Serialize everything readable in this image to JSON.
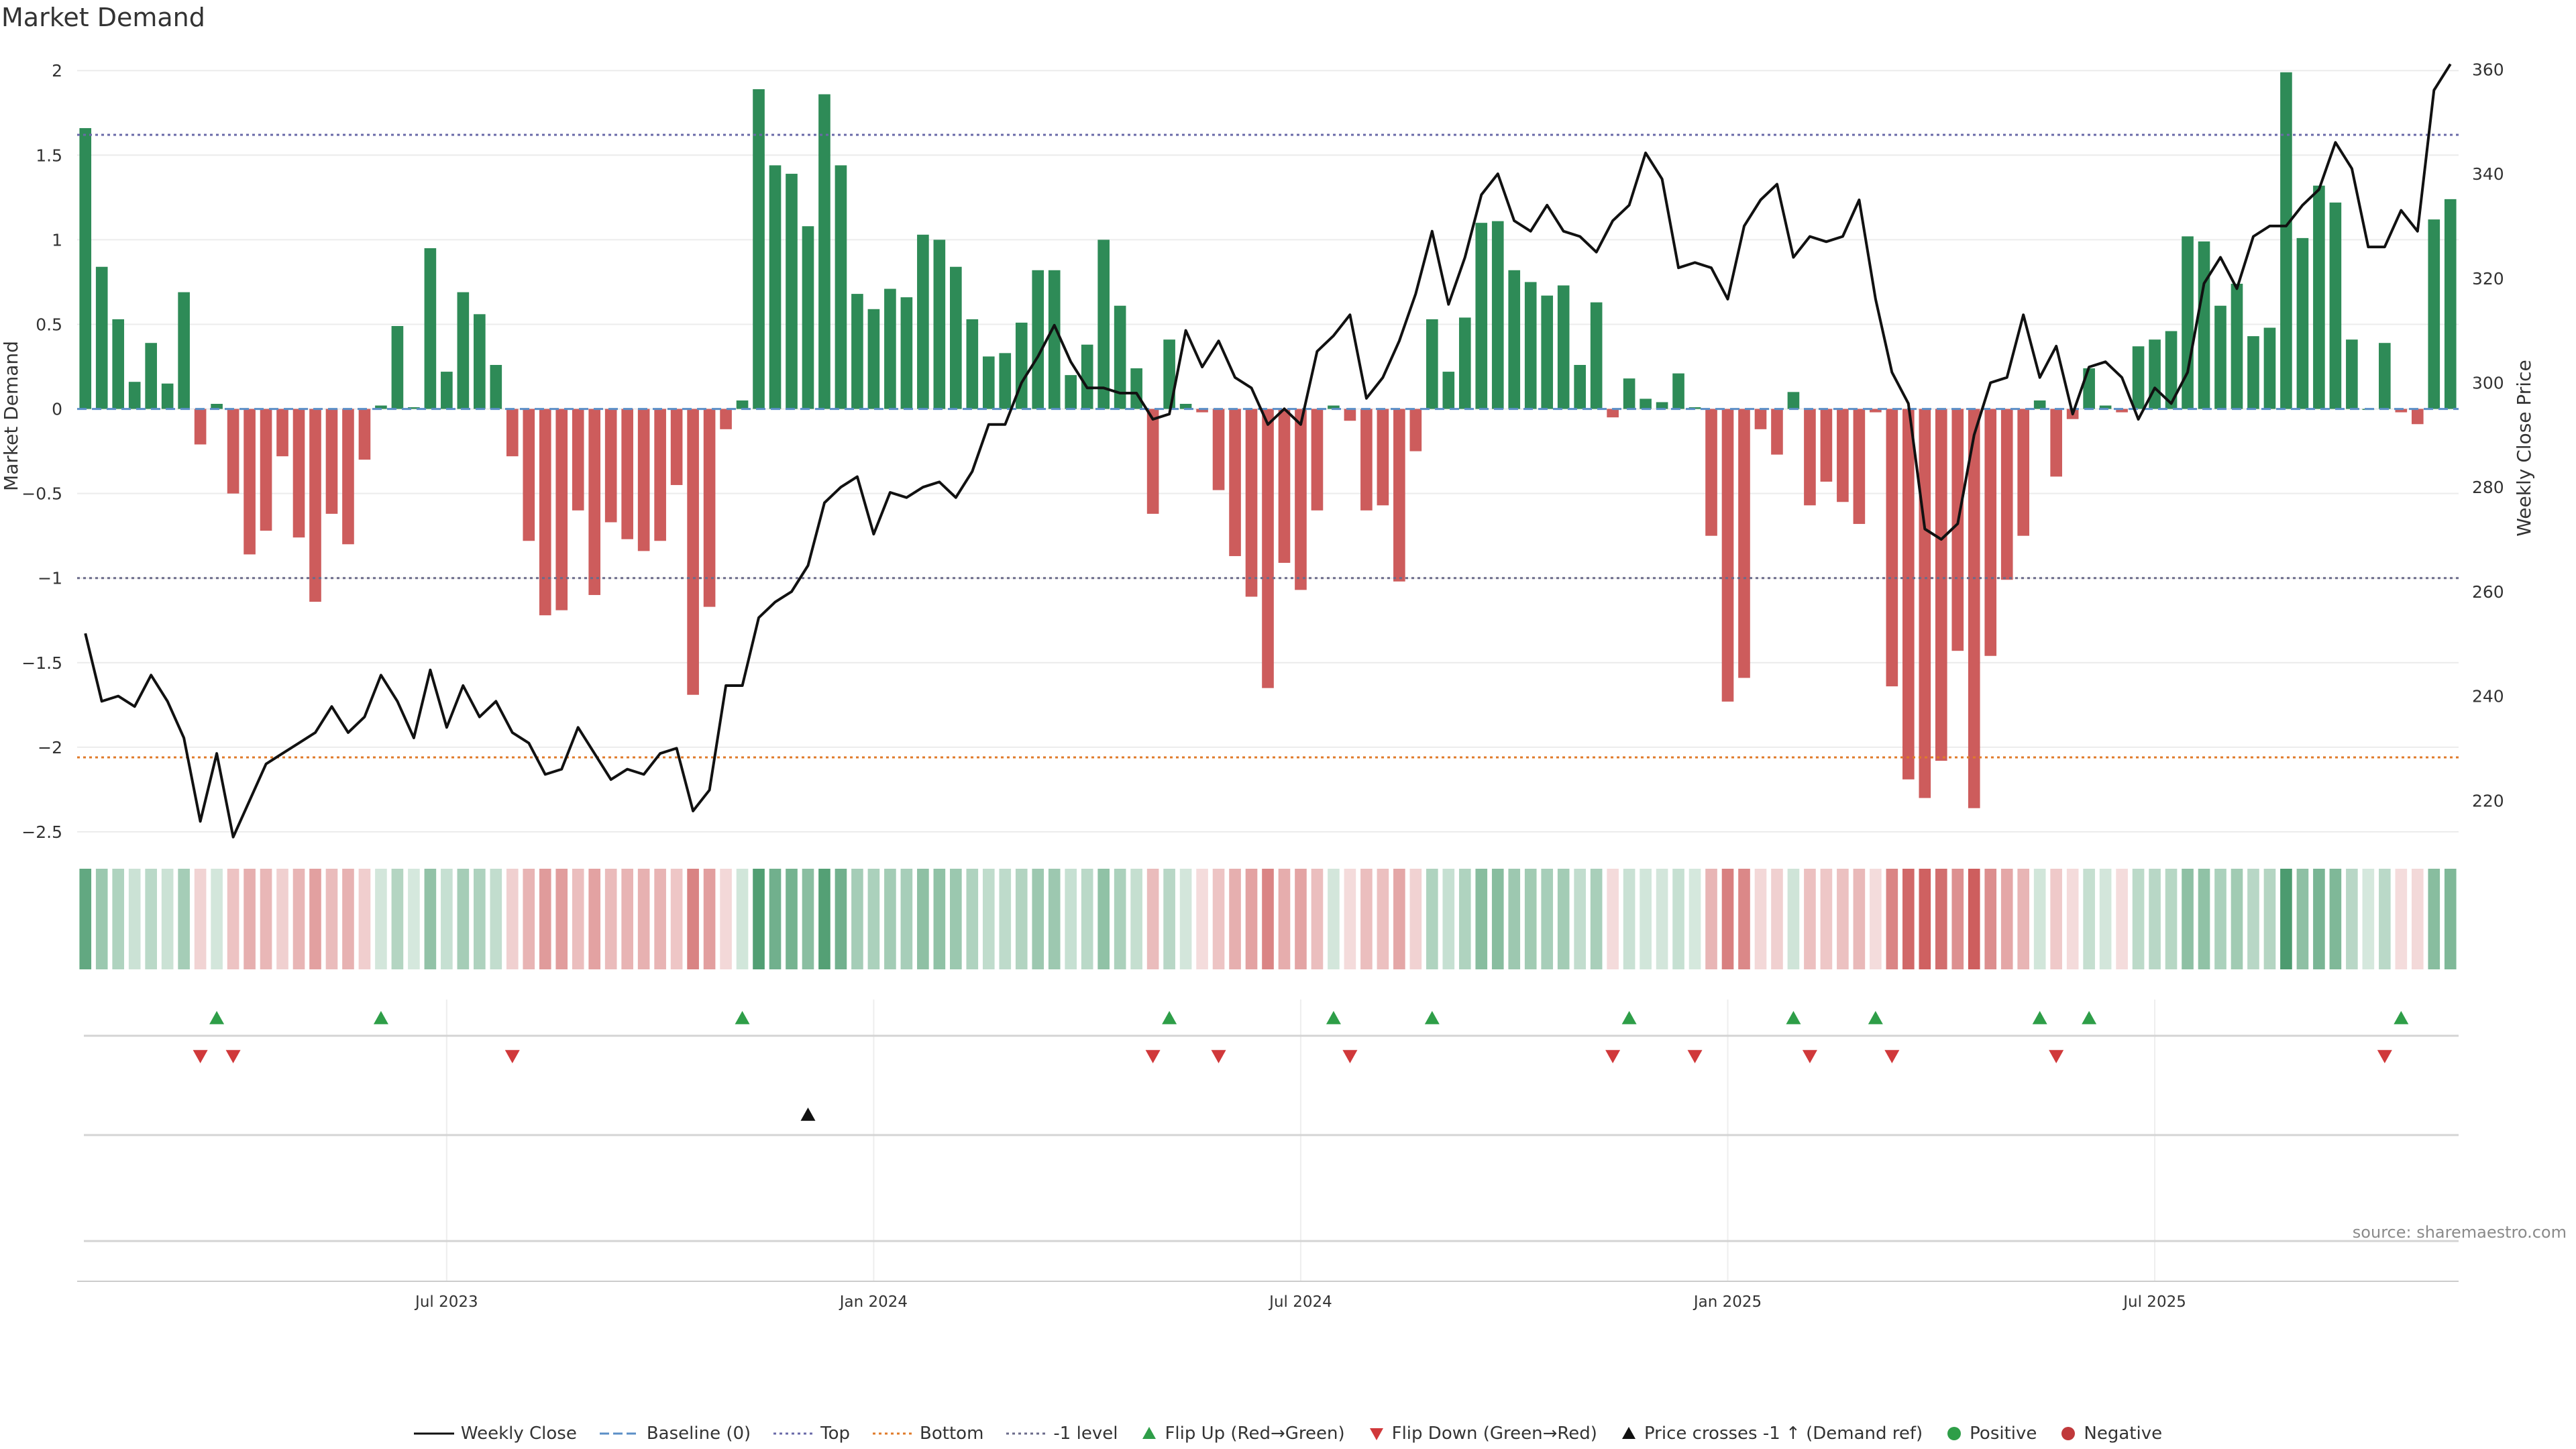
{
  "title": "Market Demand",
  "source": "source: sharemaestro.com",
  "chart_data": {
    "type": "bar+line",
    "title": "Market Demand",
    "ylabel_left": "Market Demand",
    "ylabel_right": "Weekly Close Price",
    "ylim_left": [
      -2.5,
      2.1
    ],
    "ylim_right": [
      214,
      363
    ],
    "left_ticks": [
      2,
      1.5,
      1,
      0.5,
      0,
      -0.5,
      -1,
      -1.5,
      -2,
      -2.5
    ],
    "left_tick_labels": [
      "2",
      "1.5",
      "1",
      "0.5",
      "0",
      "−0.5",
      "−1",
      "−1.5",
      "−2",
      "−2.5"
    ],
    "right_ticks": [
      360,
      340,
      320,
      300,
      280,
      260,
      240,
      220
    ],
    "x_tick_labels": [
      "Jul 2023",
      "Jan 2024",
      "Jul 2024",
      "Jan 2025",
      "Jul 2025"
    ],
    "x_tick_indices": [
      22,
      48,
      74,
      100,
      126
    ],
    "reference_lines": {
      "top": 1.62,
      "bottom": -2.06,
      "minus_one": -1,
      "baseline": 0
    },
    "demand": [
      1.66,
      0.84,
      0.53,
      0.16,
      0.39,
      0.15,
      0.69,
      -0.21,
      0.03,
      -0.5,
      -0.86,
      -0.72,
      -0.28,
      -0.76,
      -1.14,
      -0.62,
      -0.8,
      -0.3,
      0.02,
      0.49,
      0.01,
      0.95,
      0.22,
      0.69,
      0.56,
      0.26,
      -0.28,
      -0.78,
      -1.22,
      -1.19,
      -0.6,
      -1.1,
      -0.67,
      -0.77,
      -0.84,
      -0.78,
      -0.45,
      -1.69,
      -1.17,
      -0.12,
      0.05,
      1.89,
      1.44,
      1.39,
      1.08,
      1.86,
      1.44,
      0.68,
      0.59,
      0.71,
      0.66,
      1.03,
      1.0,
      0.84,
      0.53,
      0.31,
      0.33,
      0.51,
      0.82,
      0.82,
      0.2,
      0.38,
      1.0,
      0.61,
      0.24,
      -0.62,
      0.41,
      0.03,
      -0.02,
      -0.48,
      -0.87,
      -1.11,
      -1.65,
      -0.91,
      -1.07,
      -0.6,
      0.02,
      -0.07,
      -0.6,
      -0.57,
      -1.02,
      -0.25,
      0.53,
      0.22,
      0.54,
      1.1,
      1.11,
      0.82,
      0.75,
      0.67,
      0.73,
      0.26,
      0.63,
      -0.05,
      0.18,
      0.06,
      0.04,
      0.21,
      0.01,
      -0.75,
      -1.73,
      -1.59,
      -0.12,
      -0.27,
      0.1,
      -0.57,
      -0.43,
      -0.55,
      -0.68,
      -0.02,
      -1.64,
      -2.19,
      -2.3,
      -2.08,
      -1.43,
      -2.36,
      -1.46,
      -1.01,
      -0.75,
      0.05,
      -0.4,
      -0.06,
      0.24,
      0.02,
      -0.02,
      0.37,
      0.41,
      0.46,
      1.02,
      0.99,
      0.61,
      0.74,
      0.43,
      0.48,
      1.99,
      1.01,
      1.32,
      1.22,
      0.41,
      0.0,
      0.39,
      -0.02,
      -0.09,
      1.12,
      1.24
    ],
    "weekly_close": [
      252,
      239,
      240,
      238,
      244,
      239,
      232,
      216,
      229,
      213,
      220,
      227,
      229,
      231,
      233,
      238,
      233,
      236,
      244,
      239,
      232,
      245,
      234,
      242,
      236,
      239,
      233,
      231,
      225,
      226,
      234,
      229,
      224,
      226,
      225,
      229,
      230,
      218,
      222,
      242,
      242,
      255,
      258,
      260,
      265,
      277,
      280,
      282,
      271,
      279,
      278,
      280,
      281,
      278,
      283,
      292,
      292,
      300,
      305,
      311,
      304,
      299,
      299,
      298,
      298,
      293,
      294,
      310,
      303,
      308,
      301,
      299,
      292,
      295,
      292,
      306,
      309,
      313,
      297,
      301,
      308,
      317,
      329,
      315,
      324,
      336,
      340,
      331,
      329,
      334,
      329,
      328,
      325,
      331,
      334,
      344,
      339,
      322,
      323,
      322,
      316,
      330,
      335,
      338,
      324,
      328,
      327,
      328,
      335,
      316,
      302,
      296,
      272,
      270,
      273,
      290,
      300,
      301,
      313,
      301,
      307,
      294,
      303,
      304,
      301,
      293,
      299,
      296,
      302,
      319,
      324,
      318,
      328,
      330,
      330,
      334,
      337,
      346,
      341,
      326,
      326,
      333,
      329,
      356,
      361
    ],
    "flip_up_indices": [
      8,
      18,
      40,
      66,
      76,
      82,
      94,
      104,
      109,
      119,
      122,
      141
    ],
    "flip_down_indices": [
      7,
      9,
      26,
      65,
      69,
      77,
      93,
      98,
      105,
      110,
      120,
      140
    ],
    "price_cross_indices": [
      44
    ]
  },
  "legend": [
    {
      "label": "Weekly Close",
      "kind": "line",
      "color": "#111111",
      "style": "solid"
    },
    {
      "label": "Baseline (0)",
      "kind": "line",
      "color": "#5b8fc7",
      "style": "dashed"
    },
    {
      "label": "Top",
      "kind": "line",
      "color": "#6a6aa8",
      "style": "dotted"
    },
    {
      "label": "Bottom",
      "kind": "line",
      "color": "#e07b2a",
      "style": "dotted"
    },
    {
      "label": "-1 level",
      "kind": "line",
      "color": "#6b6b8a",
      "style": "dotted"
    },
    {
      "label": "Flip Up (Red→Green)",
      "kind": "tri-up",
      "color": "#2e9e48"
    },
    {
      "label": "Flip Down (Green→Red)",
      "kind": "tri-down",
      "color": "#d0383a"
    },
    {
      "label": "Price crosses -1 ↑ (Demand ref)",
      "kind": "tri-up",
      "color": "#111111"
    },
    {
      "label": "Positive",
      "kind": "dot",
      "color": "#2e9e48"
    },
    {
      "label": "Negative",
      "kind": "dot",
      "color": "#c0393b"
    }
  ],
  "colors": {
    "positive": "#2e8b57",
    "negative": "#cd5c5c",
    "price": "#111111"
  }
}
